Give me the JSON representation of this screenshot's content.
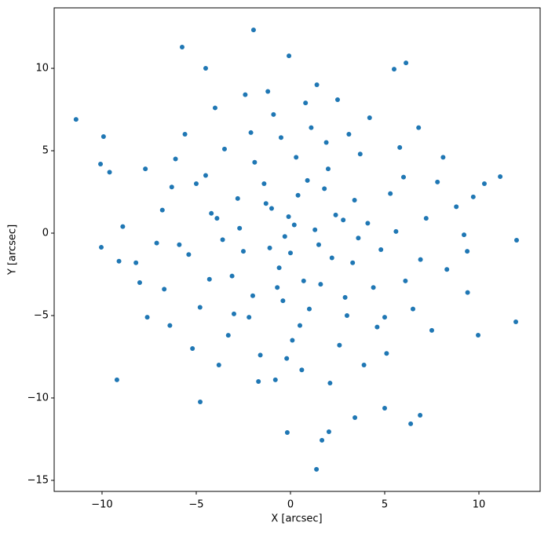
{
  "chart_data": {
    "type": "scatter",
    "xlabel": "X [arcsec]",
    "ylabel": "Y [arcsec]",
    "xlim": [
      -12.54,
      13.25
    ],
    "ylim": [
      -15.67,
      13.67
    ],
    "xticks": [
      {
        "value": -10,
        "label": "−10"
      },
      {
        "value": -5,
        "label": "−5"
      },
      0,
      5,
      10
    ],
    "yticks": [
      {
        "value": -15,
        "label": "−15"
      },
      {
        "value": -10,
        "label": "−10"
      },
      {
        "value": -5,
        "label": "−5"
      },
      0,
      5,
      10
    ],
    "color": "#1f77b4",
    "x": [
      -11.38,
      -1.96,
      -5.75,
      12.0,
      11.96,
      -9.21,
      1.38,
      1.67,
      -0.17,
      2.04,
      -4.79,
      3.42,
      5.0,
      6.38,
      6.88,
      9.96,
      10.29,
      11.13,
      -10.08,
      -9.92,
      -10.04,
      6.13,
      5.5,
      -0.08,
      -4.5,
      9.21,
      9.38,
      0.2,
      -1.3,
      1.5,
      -0.6,
      2.4,
      -2.7,
      0.9,
      -0.4,
      3.3,
      -3.1,
      1.8,
      -1.9,
      4.1,
      -4.2,
      0.5,
      2.9,
      -2.2,
      5.3,
      -5.4,
      3.7,
      -3.5,
      6.1,
      -6.3,
      1.1,
      -0.9,
      2.6,
      -1.6,
      7.2,
      -7.1,
      4.6,
      -4.8,
      5.8,
      -5.6,
      0.0,
      -0.1,
      1.3,
      -1.1,
      0.7,
      -2.8,
      2.2,
      -3.6,
      3.4,
      0.3,
      -0.7,
      4.8,
      -4.5,
      1.9,
      -2.0,
      3.0,
      -3.3,
      6.5,
      -6.7,
      7.8,
      -7.7,
      8.3,
      -8.2,
      2.5,
      -2.4,
      0.6,
      -0.8,
      4.2,
      -4.0,
      5.1,
      -5.2,
      8.8,
      -8.9,
      9.4,
      -9.1,
      6.8,
      -6.4,
      3.9,
      -3.8,
      1.4,
      -1.2,
      2.1,
      -1.7,
      7.5,
      -7.6,
      0.4,
      -0.3,
      1.6,
      -1.4,
      2.8,
      -2.5,
      0.1,
      -0.5,
      3.6,
      -3.9,
      5.6,
      -5.9,
      6.0,
      -6.1,
      4.4,
      -4.3,
      1.0,
      -1.0,
      2.0,
      -2.1,
      5.0,
      -5.0,
      3.1,
      -3.0,
      0.8,
      -0.2,
      6.9,
      -6.8,
      8.1,
      -8.0,
      9.7,
      -9.6
    ],
    "y": [
      6.9,
      12.33,
      11.29,
      -0.43,
      -5.38,
      -8.9,
      -14.33,
      -12.57,
      -12.1,
      -12.05,
      -10.24,
      -11.19,
      -10.62,
      -11.57,
      -11.05,
      -6.19,
      3.0,
      3.43,
      4.19,
      5.86,
      -0.86,
      10.33,
      9.95,
      10.76,
      10.0,
      -0.1,
      -1.1,
      0.5,
      1.8,
      -0.7,
      -2.1,
      1.1,
      0.3,
      3.2,
      -4.1,
      -1.8,
      -2.6,
      2.7,
      4.3,
      0.6,
      1.2,
      -5.6,
      -3.9,
      -5.1,
      2.4,
      -1.3,
      4.8,
      5.1,
      -2.9,
      2.8,
      6.4,
      7.2,
      -6.8,
      -7.4,
      0.9,
      -0.6,
      -5.7,
      -4.5,
      5.2,
      6.0,
      -1.2,
      1.0,
      0.2,
      -0.9,
      -2.9,
      2.1,
      -1.5,
      -0.4,
      2.0,
      4.6,
      -3.3,
      -1.0,
      3.5,
      5.5,
      -3.8,
      -5.0,
      -6.2,
      -4.6,
      -3.4,
      3.1,
      3.9,
      -2.2,
      -1.8,
      8.1,
      8.4,
      -8.3,
      -8.9,
      7.0,
      7.6,
      -7.3,
      -7.0,
      1.6,
      0.4,
      -3.6,
      -1.7,
      6.4,
      -5.6,
      -8.0,
      -8.0,
      9.0,
      8.6,
      -9.1,
      -9.0,
      -5.9,
      -5.1,
      2.3,
      -0.2,
      -3.1,
      3.0,
      0.8,
      -1.1,
      -6.5,
      5.8,
      -0.3,
      0.9,
      0.1,
      -0.7,
      3.4,
      4.5,
      -3.3,
      -2.8,
      -4.6,
      1.5,
      3.9,
      6.1,
      -5.1,
      3.0,
      6.0,
      -4.9,
      7.9,
      -7.6,
      -1.6,
      1.4,
      4.6,
      -3.0,
      2.2,
      3.7
    ]
  }
}
